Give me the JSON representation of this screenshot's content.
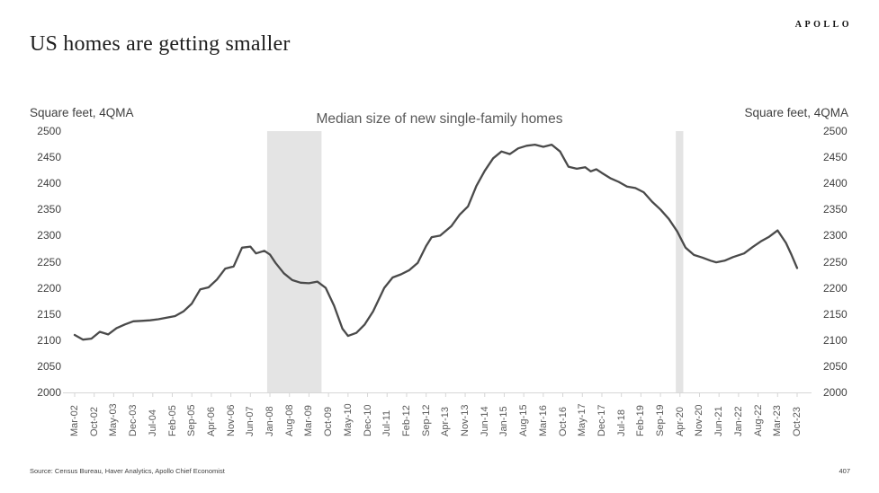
{
  "header": {
    "title": "US homes are getting smaller",
    "logo": "APOLLO"
  },
  "chart": {
    "title": "Median size of new single-family homes",
    "axis_caption": "Square feet, 4QMA"
  },
  "chart_data": {
    "type": "line",
    "title": "Median size of new single-family homes",
    "ylabel": "Square feet, 4QMA",
    "xlabel": "",
    "legend": "none",
    "grid": "off",
    "y_range": [
      2000,
      2500
    ],
    "y_ticks": [
      2500,
      2450,
      2400,
      2350,
      2300,
      2250,
      2200,
      2150,
      2100,
      2050,
      2000
    ],
    "x_tick_labels": [
      "Mar-02",
      "Oct-02",
      "May-03",
      "Dec-03",
      "Jul-04",
      "Feb-05",
      "Sep-05",
      "Apr-06",
      "Nov-06",
      "Jun-07",
      "Jan-08",
      "Aug-08",
      "Mar-09",
      "Oct-09",
      "May-10",
      "Dec-10",
      "Jul-11",
      "Feb-12",
      "Sep-12",
      "Apr-13",
      "Nov-13",
      "Jun-14",
      "Jan-15",
      "Aug-15",
      "Mar-16",
      "Oct-16",
      "May-17",
      "Dec-17",
      "Jul-18",
      "Feb-19",
      "Sep-19",
      "Apr-20",
      "Nov-20",
      "Jun-21",
      "Jan-22",
      "Aug-22",
      "Mar-23",
      "Oct-23"
    ],
    "x_months_per_tick": 7,
    "x_month_range": [
      0,
      259
    ],
    "series": [
      {
        "name": "Median size of new single-family homes, square feet (4QMA)",
        "points": [
          [
            0,
            2110
          ],
          [
            3,
            2101
          ],
          [
            6,
            2103
          ],
          [
            9,
            2116
          ],
          [
            12,
            2111
          ],
          [
            15,
            2123
          ],
          [
            18,
            2130
          ],
          [
            21,
            2136
          ],
          [
            24,
            2137
          ],
          [
            27,
            2138
          ],
          [
            30,
            2140
          ],
          [
            33,
            2143
          ],
          [
            36,
            2146
          ],
          [
            39,
            2155
          ],
          [
            42,
            2170
          ],
          [
            45,
            2197
          ],
          [
            48,
            2201
          ],
          [
            51,
            2216
          ],
          [
            54,
            2237
          ],
          [
            57,
            2241
          ],
          [
            60,
            2277
          ],
          [
            63,
            2279
          ],
          [
            65,
            2266
          ],
          [
            68,
            2271
          ],
          [
            70,
            2264
          ],
          [
            72,
            2248
          ],
          [
            75,
            2228
          ],
          [
            78,
            2215
          ],
          [
            81,
            2210
          ],
          [
            84,
            2209
          ],
          [
            87,
            2212
          ],
          [
            90,
            2200
          ],
          [
            93,
            2166
          ],
          [
            96,
            2122
          ],
          [
            98,
            2108
          ],
          [
            101,
            2114
          ],
          [
            104,
            2130
          ],
          [
            107,
            2155
          ],
          [
            111,
            2200
          ],
          [
            114,
            2220
          ],
          [
            117,
            2226
          ],
          [
            120,
            2234
          ],
          [
            123,
            2248
          ],
          [
            126,
            2280
          ],
          [
            128,
            2297
          ],
          [
            131,
            2300
          ],
          [
            135,
            2318
          ],
          [
            138,
            2340
          ],
          [
            141,
            2356
          ],
          [
            144,
            2395
          ],
          [
            147,
            2424
          ],
          [
            150,
            2448
          ],
          [
            153,
            2461
          ],
          [
            156,
            2456
          ],
          [
            159,
            2467
          ],
          [
            162,
            2472
          ],
          [
            165,
            2474
          ],
          [
            168,
            2470
          ],
          [
            171,
            2474
          ],
          [
            174,
            2461
          ],
          [
            177,
            2432
          ],
          [
            180,
            2428
          ],
          [
            183,
            2431
          ],
          [
            185,
            2423
          ],
          [
            187,
            2427
          ],
          [
            189,
            2420
          ],
          [
            192,
            2410
          ],
          [
            195,
            2403
          ],
          [
            198,
            2394
          ],
          [
            201,
            2391
          ],
          [
            204,
            2383
          ],
          [
            207,
            2365
          ],
          [
            210,
            2350
          ],
          [
            213,
            2332
          ],
          [
            216,
            2308
          ],
          [
            219,
            2277
          ],
          [
            222,
            2263
          ],
          [
            225,
            2258
          ],
          [
            228,
            2252
          ],
          [
            230,
            2249
          ],
          [
            233,
            2252
          ],
          [
            236,
            2259
          ],
          [
            240,
            2266
          ],
          [
            243,
            2278
          ],
          [
            246,
            2289
          ],
          [
            249,
            2298
          ],
          [
            252,
            2310
          ],
          [
            255,
            2286
          ],
          [
            257,
            2263
          ],
          [
            259,
            2238
          ]
        ]
      }
    ],
    "recession_bands_months": [
      [
        69,
        88.5
      ],
      [
        215.5,
        218.2
      ]
    ],
    "colors": {
      "line": "#4a4a4a",
      "band": "#e4e4e4",
      "axis": "#d6d6d6",
      "x_tick_text": "#595959",
      "y_tick_text": "#404040"
    }
  },
  "footer": {
    "source": "Source: Census Bureau, Haver Analytics, Apollo Chief Economist",
    "page": "407"
  }
}
